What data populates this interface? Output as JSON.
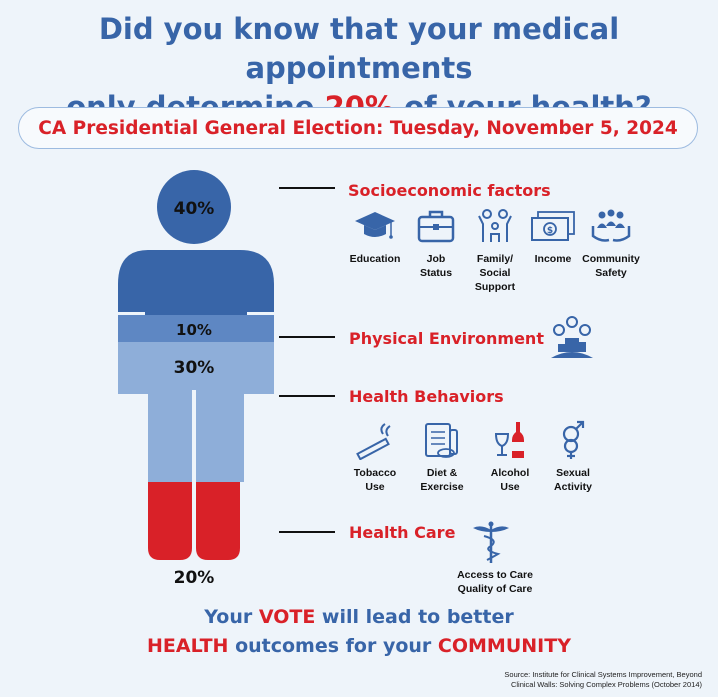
{
  "title": {
    "line1": "Did you know that your medical appointments",
    "line2_pre": "only determine ",
    "line2_highlight": "20%",
    "line2_post": " of your health?"
  },
  "banner": "CA Presidential General Election: Tuesday, November 5, 2024",
  "figure": {
    "head_pct": "40%",
    "band_pct": "10%",
    "body_pct": "30%",
    "legs_pct": "20%",
    "colors": {
      "dark_blue": "#3865a8",
      "mid_blue": "#5e87c3",
      "light_blue": "#8eaed9",
      "red": "#d92128"
    }
  },
  "categories": {
    "socioeconomic": {
      "title": "Socioeconomic factors",
      "items": [
        {
          "icon": "graduation-cap-icon",
          "label": "Education"
        },
        {
          "icon": "briefcase-icon",
          "label": "Job\nStatus"
        },
        {
          "icon": "family-icon",
          "label": "Family/\nSocial\nSupport"
        },
        {
          "icon": "money-icon",
          "label": "Income"
        },
        {
          "icon": "community-icon",
          "label": "Community\nSafety"
        }
      ]
    },
    "physical": {
      "title": "Physical Environment",
      "icon": "environment-icon"
    },
    "behaviors": {
      "title": "Health Behaviors",
      "items": [
        {
          "icon": "cigarette-icon",
          "label": "Tobacco\nUse"
        },
        {
          "icon": "diet-clipboard-icon",
          "label": "Diet &\nExercise"
        },
        {
          "icon": "wine-bottle-icon",
          "label": "Alcohol\nUse"
        },
        {
          "icon": "gender-symbols-icon",
          "label": "Sexual\nActivity"
        }
      ]
    },
    "care": {
      "title": "Health Care",
      "icon": "caduceus-icon",
      "label": "Access to Care\nQuality of Care"
    }
  },
  "vote": {
    "l1_a": "Your ",
    "l1_b": "VOTE",
    "l1_c": " will lead to better",
    "l2_a": "HEALTH",
    "l2_b": " outcomes for your ",
    "l2_c": "COMMUNITY"
  },
  "source": "Source: Institute for Clinical Systems Improvement, Beyond\nClinical Walls: Solving Complex Problems (October 2014)"
}
